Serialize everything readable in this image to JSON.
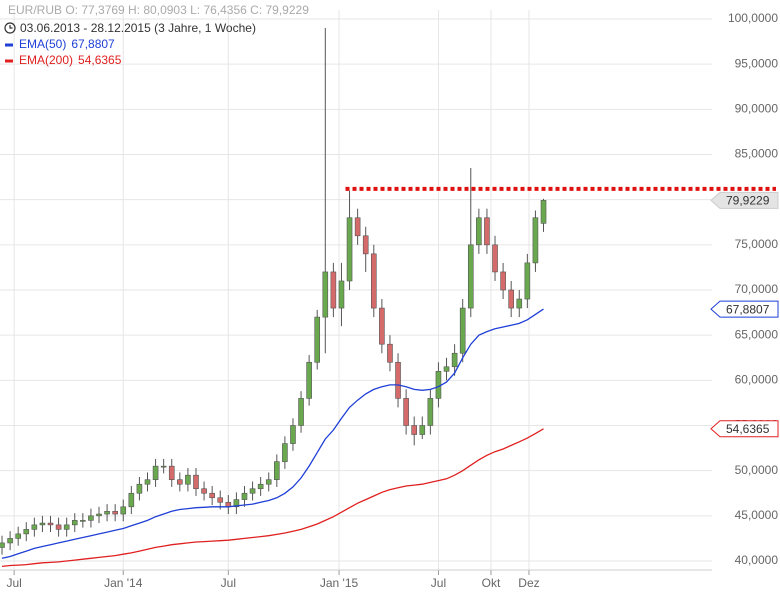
{
  "chart_data": {
    "type": "candlestick",
    "header": "EUR/RUB   O: 77,3769   H: 80,0903   L: 76,4356   C: 79,9229",
    "period": "03.06.2013 - 28.12.2015 (3 Jahre, 1 Woche)",
    "xlim": [
      -0.25,
      87.6
    ],
    "xticks": [
      {
        "value": 1.5,
        "label": "Jul"
      },
      {
        "value": 15,
        "label": "Jan '14"
      },
      {
        "value": 28,
        "label": "Jul"
      },
      {
        "value": 41.7,
        "label": "Jan '15"
      },
      {
        "value": 54,
        "label": "Jul"
      },
      {
        "value": 60.5,
        "label": "Okt"
      },
      {
        "value": 65.2,
        "label": "Dez"
      }
    ],
    "ylim": [
      39,
      101
    ],
    "yticks": [
      {
        "value": 40,
        "label": "40,0000"
      },
      {
        "value": 45,
        "label": "45,0000"
      },
      {
        "value": 50,
        "label": "50,0000"
      },
      {
        "value": 55,
        "label": "55,0000"
      },
      {
        "value": 60,
        "label": "60,0000"
      },
      {
        "value": 65,
        "label": "65,0000"
      },
      {
        "value": 70,
        "label": "70,0000"
      },
      {
        "value": 75,
        "label": "75,0000"
      },
      {
        "value": 80,
        "label": "80,0000"
      },
      {
        "value": 85,
        "label": "85,0000"
      },
      {
        "value": 90,
        "label": "90,0000"
      },
      {
        "value": 95,
        "label": "95,0000"
      },
      {
        "value": 100,
        "label": "100,0000"
      }
    ],
    "grid": true,
    "up_color": "#6aa84f",
    "down_color": "#d46a6a",
    "ohlc": {
      "open": [
        41.5,
        42,
        42.5,
        43,
        43.5,
        44,
        44.2,
        44,
        43.5,
        44,
        44.5,
        44.5,
        45,
        45.2,
        45.5,
        45.2,
        46,
        47.5,
        48.5,
        49,
        50.5,
        50.5,
        49,
        48.5,
        49.5,
        48,
        47.5,
        47,
        46.5,
        46,
        46.8,
        47.5,
        48,
        48.5,
        49,
        51,
        53,
        55,
        58,
        62,
        67,
        72,
        68,
        71,
        78,
        76,
        74,
        68,
        64,
        62,
        58,
        55,
        54,
        55,
        58,
        61,
        61.5,
        63,
        68,
        75,
        78,
        75,
        72,
        70,
        68,
        69,
        73,
        77.3769
      ],
      "high": [
        42.8,
        43.3,
        43.8,
        44.3,
        44.8,
        45,
        45,
        44.8,
        44.8,
        45.3,
        45.3,
        45.8,
        46,
        46.3,
        46.3,
        46.8,
        48.3,
        49.3,
        49.8,
        51.3,
        51.3,
        51.3,
        49.8,
        50.3,
        50.3,
        48.8,
        48.3,
        47.8,
        47.3,
        47.6,
        48.3,
        48.8,
        49.3,
        49.8,
        51.8,
        53.8,
        55.8,
        58.8,
        62.8,
        67.8,
        99,
        73,
        73,
        81,
        79,
        77,
        75,
        69,
        65,
        63,
        59,
        56,
        56,
        59,
        62,
        62.5,
        64,
        69,
        83.5,
        79,
        79,
        76,
        73,
        71,
        70,
        74,
        78.8,
        80.0903
      ],
      "low": [
        40.7,
        41.2,
        41.7,
        42.2,
        42.7,
        43.2,
        43.2,
        42.7,
        42.7,
        43.2,
        43.7,
        43.7,
        44.2,
        44.4,
        44.4,
        44.4,
        45.2,
        46.7,
        47.7,
        48.2,
        49.7,
        48.2,
        47.7,
        47.7,
        47.2,
        46.7,
        46.2,
        45.7,
        45.2,
        45.2,
        46,
        46.7,
        47.2,
        47.7,
        48.2,
        50.2,
        52.2,
        54.2,
        57.2,
        61.2,
        63,
        67,
        66,
        70,
        75,
        72,
        67,
        63,
        61,
        57,
        54,
        52.8,
        53.5,
        54,
        57,
        60,
        60.5,
        62,
        67,
        74,
        74,
        71,
        69,
        67,
        67,
        68,
        72,
        76.4356
      ],
      "close": [
        42,
        42.5,
        43,
        43.5,
        44,
        44.2,
        44,
        43.5,
        44,
        44.5,
        44.5,
        45,
        45.2,
        45.5,
        45.2,
        46,
        47.5,
        48.5,
        49,
        50.5,
        50.5,
        49,
        48.5,
        49.5,
        48,
        47.5,
        47,
        46.5,
        46,
        46.8,
        47.5,
        48,
        48.5,
        49,
        51,
        53,
        55,
        58,
        62,
        67,
        72,
        68,
        71,
        78,
        76,
        74,
        68,
        64,
        62,
        58,
        55,
        54,
        55,
        58,
        61,
        61.5,
        63,
        68,
        75,
        78,
        75,
        72,
        70,
        68,
        69,
        73,
        78,
        79.9229
      ],
      "last_label": "79,9229"
    },
    "series": [
      {
        "name": "EMA(50)",
        "color": "#1f3fd6",
        "last_label": "67,8807",
        "values": [
          40.3,
          40.5,
          40.8,
          41.1,
          41.4,
          41.6,
          41.8,
          42.0,
          42.2,
          42.4,
          42.6,
          42.8,
          43.0,
          43.2,
          43.4,
          43.6,
          43.9,
          44.2,
          44.5,
          44.9,
          45.2,
          45.5,
          45.7,
          45.8,
          45.9,
          45.95,
          46.0,
          46.0,
          46.0,
          46.1,
          46.2,
          46.3,
          46.5,
          46.7,
          47.0,
          47.5,
          48.2,
          49.2,
          50.5,
          52.0,
          53.5,
          54.5,
          55.8,
          57.0,
          57.8,
          58.5,
          59.0,
          59.3,
          59.5,
          59.5,
          59.3,
          59.0,
          58.9,
          59.0,
          59.3,
          59.8,
          60.8,
          62.5,
          64.0,
          65.0,
          65.4,
          65.7,
          65.9,
          66.1,
          66.3,
          66.7,
          67.3,
          67.8807
        ]
      },
      {
        "name": "EMA(200)",
        "color": "#e02020",
        "last_label": "54,6365",
        "values": [
          39.4,
          39.5,
          39.55,
          39.6,
          39.7,
          39.8,
          39.85,
          39.9,
          40.0,
          40.1,
          40.2,
          40.3,
          40.4,
          40.5,
          40.6,
          40.75,
          40.9,
          41.1,
          41.3,
          41.5,
          41.65,
          41.8,
          41.9,
          42.0,
          42.1,
          42.15,
          42.2,
          42.25,
          42.3,
          42.4,
          42.5,
          42.6,
          42.7,
          42.8,
          42.95,
          43.1,
          43.3,
          43.5,
          43.8,
          44.1,
          44.5,
          44.9,
          45.4,
          45.9,
          46.4,
          46.8,
          47.2,
          47.6,
          47.9,
          48.1,
          48.3,
          48.4,
          48.5,
          48.7,
          48.9,
          49.1,
          49.5,
          50.0,
          50.6,
          51.2,
          51.7,
          52.1,
          52.4,
          52.8,
          53.2,
          53.6,
          54.1,
          54.6365
        ]
      }
    ],
    "hline": {
      "value": 81.2,
      "x_start": 42.5,
      "color": "#e01010"
    }
  }
}
